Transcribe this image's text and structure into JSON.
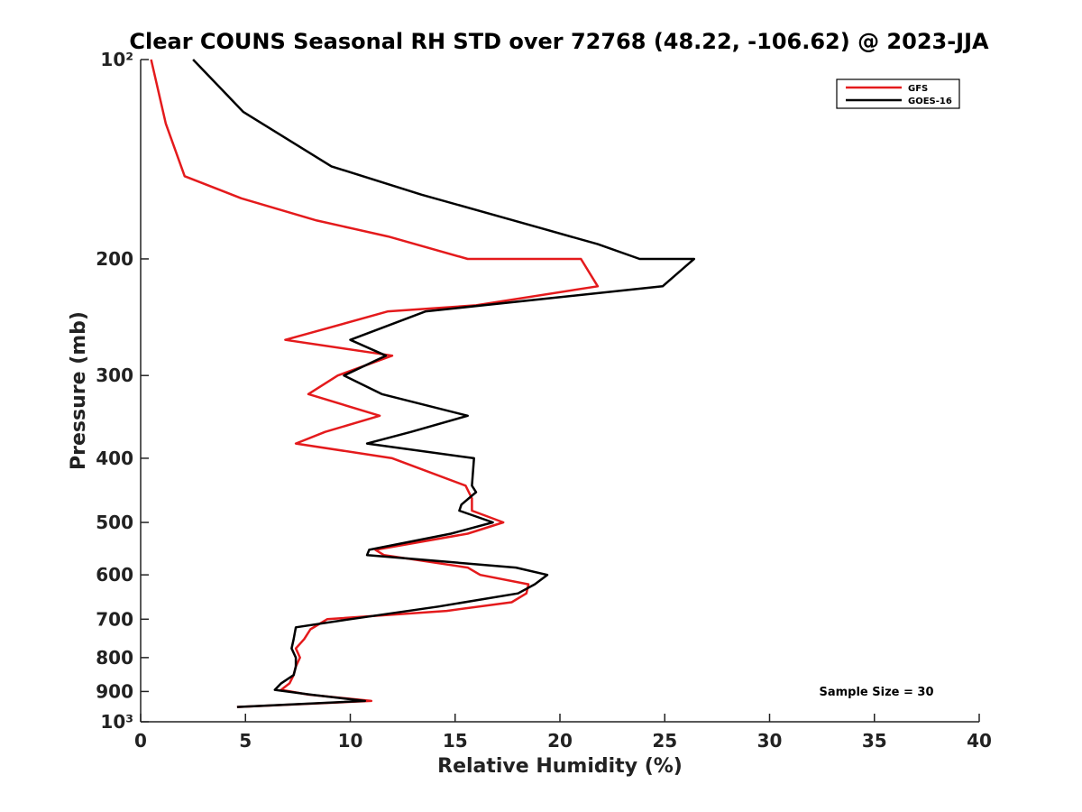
{
  "chart_data": {
    "type": "line",
    "title": "Clear COUNS Seasonal RH STD over 72768 (48.22, -106.62) @ 2023-JJA",
    "xlabel": "Relative Humidity (%)",
    "ylabel": "Pressure (mb)",
    "xlim": [
      0,
      40
    ],
    "ylim": [
      100,
      1000
    ],
    "yscale": "log",
    "y_reversed": true,
    "x_ticks": [
      0,
      5,
      10,
      15,
      20,
      25,
      30,
      35,
      40
    ],
    "x_tick_labels": [
      "0",
      "5",
      "10",
      "15",
      "20",
      "25",
      "30",
      "35",
      "40"
    ],
    "y_ticks": [
      100,
      200,
      300,
      400,
      500,
      600,
      700,
      800,
      900,
      1000
    ],
    "y_tick_labels": [
      "10²",
      "200",
      "300",
      "400",
      "500",
      "600",
      "700",
      "800",
      "900",
      "10³"
    ],
    "grid": false,
    "legend_position": "top-right",
    "annotation": "Sample Size = 30",
    "series": [
      {
        "name": "GFS",
        "color": "#e41a1c",
        "points": [
          [
            0.5,
            100
          ],
          [
            1.2,
            125
          ],
          [
            2.1,
            150
          ],
          [
            4.8,
            162
          ],
          [
            8.4,
            175
          ],
          [
            11.8,
            185
          ],
          [
            15.6,
            200
          ],
          [
            21.0,
            200
          ],
          [
            21.8,
            220
          ],
          [
            16.0,
            235
          ],
          [
            11.8,
            240
          ],
          [
            6.9,
            265
          ],
          [
            12.0,
            280
          ],
          [
            9.4,
            300
          ],
          [
            8.0,
            320
          ],
          [
            11.4,
            345
          ],
          [
            8.8,
            365
          ],
          [
            7.4,
            380
          ],
          [
            12.0,
            400
          ],
          [
            15.5,
            440
          ],
          [
            15.8,
            460
          ],
          [
            15.8,
            480
          ],
          [
            17.3,
            500
          ],
          [
            15.6,
            520
          ],
          [
            11.2,
            550
          ],
          [
            11.6,
            560
          ],
          [
            15.6,
            585
          ],
          [
            16.2,
            600
          ],
          [
            18.5,
            620
          ],
          [
            18.4,
            640
          ],
          [
            17.7,
            660
          ],
          [
            14.6,
            680
          ],
          [
            8.9,
            700
          ],
          [
            8.1,
            725
          ],
          [
            7.8,
            750
          ],
          [
            7.4,
            775
          ],
          [
            7.6,
            800
          ],
          [
            7.4,
            825
          ],
          [
            7.3,
            850
          ],
          [
            7.1,
            875
          ],
          [
            6.7,
            895
          ],
          [
            8.0,
            910
          ],
          [
            11.0,
            930
          ],
          [
            4.6,
            950
          ]
        ]
      },
      {
        "name": "GOES-16",
        "color": "#000000",
        "points": [
          [
            2.5,
            100
          ],
          [
            4.9,
            120
          ],
          [
            9.1,
            145
          ],
          [
            13.4,
            160
          ],
          [
            17.8,
            175
          ],
          [
            21.8,
            190
          ],
          [
            23.8,
            200
          ],
          [
            26.4,
            200
          ],
          [
            24.9,
            220
          ],
          [
            13.6,
            240
          ],
          [
            10.0,
            265
          ],
          [
            11.7,
            280
          ],
          [
            9.7,
            300
          ],
          [
            11.5,
            320
          ],
          [
            15.6,
            345
          ],
          [
            12.9,
            365
          ],
          [
            10.8,
            380
          ],
          [
            15.9,
            400
          ],
          [
            15.8,
            440
          ],
          [
            16.0,
            450
          ],
          [
            15.3,
            470
          ],
          [
            15.2,
            480
          ],
          [
            16.8,
            500
          ],
          [
            14.8,
            520
          ],
          [
            10.9,
            550
          ],
          [
            10.8,
            560
          ],
          [
            17.9,
            585
          ],
          [
            19.4,
            600
          ],
          [
            18.8,
            620
          ],
          [
            18.0,
            640
          ],
          [
            14.2,
            670
          ],
          [
            10.0,
            700
          ],
          [
            7.4,
            720
          ],
          [
            7.3,
            750
          ],
          [
            7.2,
            775
          ],
          [
            7.4,
            800
          ],
          [
            7.4,
            825
          ],
          [
            7.3,
            850
          ],
          [
            6.7,
            875
          ],
          [
            6.4,
            895
          ],
          [
            8.1,
            910
          ],
          [
            10.7,
            930
          ],
          [
            4.6,
            950
          ]
        ]
      }
    ]
  }
}
